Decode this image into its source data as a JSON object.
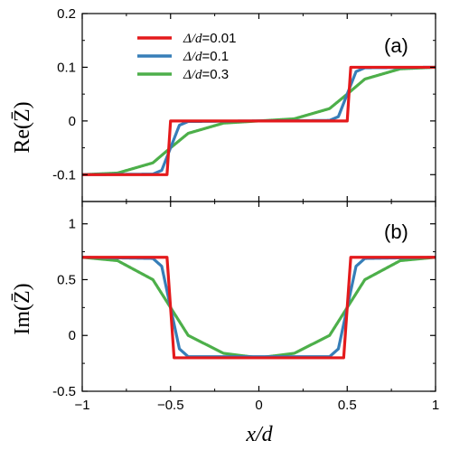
{
  "chart_data": [
    {
      "panel": "(a)",
      "type": "line",
      "ylabel": "Re(Z̄)",
      "xlim": [
        -1,
        1
      ],
      "ylim": [
        -0.15,
        0.2
      ],
      "yticks": [
        "-0.1",
        "0",
        "0.1",
        "0.2"
      ],
      "legend": {
        "placement": "top-left"
      },
      "series": [
        {
          "name": "Δ/d=0.01",
          "color": "#e41a1c",
          "sigma": 0.01,
          "x": [
            -1,
            -0.52,
            -0.5,
            -0.48,
            0.48,
            0.5,
            0.52,
            1
          ],
          "y": [
            -0.1,
            -0.1,
            0,
            0,
            0,
            0,
            0.1,
            0.1
          ]
        },
        {
          "name": "Δ/d=0.1",
          "color": "#377eb8",
          "sigma": 0.1,
          "x": [
            -1,
            -0.6,
            -0.55,
            -0.5,
            -0.45,
            -0.4,
            0.4,
            0.45,
            0.5,
            0.55,
            0.6,
            1
          ],
          "y": [
            -0.1,
            -0.099,
            -0.092,
            -0.05,
            -0.008,
            -0.001,
            0.001,
            0.008,
            0.05,
            0.092,
            0.099,
            0.1
          ]
        },
        {
          "name": "Δ/d=0.3",
          "color": "#4daf4a",
          "sigma": 0.3,
          "x": [
            -1,
            -0.8,
            -0.6,
            -0.5,
            -0.4,
            -0.2,
            0,
            0.2,
            0.4,
            0.5,
            0.6,
            0.8,
            1
          ],
          "y": [
            -0.1,
            -0.097,
            -0.078,
            -0.05,
            -0.023,
            -0.004,
            0,
            0.004,
            0.023,
            0.05,
            0.078,
            0.097,
            0.1
          ]
        }
      ]
    },
    {
      "panel": "(b)",
      "type": "line",
      "ylabel": "Im(Z̄)",
      "xlabel": "x/d",
      "xlim": [
        -1,
        1
      ],
      "ylim": [
        -0.5,
        1.2
      ],
      "xticks": [
        "−1",
        "−0.5",
        "0",
        "0.5",
        "1"
      ],
      "yticks": [
        "-0.5",
        "0",
        "0.5",
        "1"
      ],
      "series": [
        {
          "name": "Δ/d=0.01",
          "color": "#e41a1c",
          "sigma": 0.01,
          "x": [
            -1,
            -0.52,
            -0.5,
            -0.48,
            0.48,
            0.5,
            0.52,
            1
          ],
          "y": [
            0.7,
            0.7,
            0.25,
            -0.2,
            -0.2,
            0.25,
            0.7,
            0.7
          ]
        },
        {
          "name": "Δ/d=0.1",
          "color": "#377eb8",
          "sigma": 0.1,
          "x": [
            -1,
            -0.6,
            -0.55,
            -0.5,
            -0.45,
            -0.4,
            0.4,
            0.45,
            0.5,
            0.55,
            0.6,
            1
          ],
          "y": [
            0.7,
            0.69,
            0.62,
            0.25,
            -0.12,
            -0.19,
            -0.19,
            -0.12,
            0.25,
            0.62,
            0.69,
            0.7
          ]
        },
        {
          "name": "Δ/d=0.3",
          "color": "#4daf4a",
          "sigma": 0.3,
          "x": [
            -1,
            -0.8,
            -0.6,
            -0.5,
            -0.4,
            -0.2,
            0,
            0.2,
            0.4,
            0.5,
            0.6,
            0.8,
            1
          ],
          "y": [
            0.7,
            0.67,
            0.5,
            0.25,
            0.0,
            -0.16,
            -0.2,
            -0.16,
            0.0,
            0.25,
            0.5,
            0.67,
            0.7
          ]
        }
      ]
    }
  ]
}
